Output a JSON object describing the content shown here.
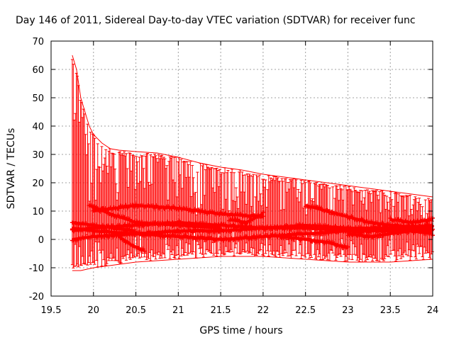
{
  "chart_data": {
    "type": "scatter",
    "title": "Day 146 of 2011, Sidereal Day-to-day VTEC variation (SDTVAR) for receiver func",
    "xlabel": "GPS time / hours",
    "ylabel": "SDTVAR / TECUs",
    "xlim": [
      19.5,
      24
    ],
    "ylim": [
      -20,
      70
    ],
    "xticks": [
      "19.5",
      "20",
      "20.5",
      "21",
      "21.5",
      "22",
      "22.5",
      "23",
      "23.5",
      "24"
    ],
    "yticks": [
      "-20",
      "-10",
      "0",
      "10",
      "20",
      "30",
      "40",
      "50",
      "60",
      "70"
    ],
    "grid": true,
    "series_color": "#ff0000",
    "description": "Many satellite tracks of SDTVAR values with error bars, 19.75-24 h",
    "upper_envelope": [
      [
        19.75,
        65
      ],
      [
        19.8,
        60
      ],
      [
        19.85,
        50
      ],
      [
        19.9,
        45
      ],
      [
        19.95,
        40
      ],
      [
        20.0,
        37
      ],
      [
        20.1,
        34
      ],
      [
        20.2,
        32
      ],
      [
        20.3,
        31.5
      ],
      [
        20.5,
        31
      ],
      [
        20.75,
        30.5
      ],
      [
        21.0,
        29
      ],
      [
        21.25,
        27
      ],
      [
        21.5,
        25.5
      ],
      [
        21.75,
        24.5
      ],
      [
        22.0,
        23
      ],
      [
        22.25,
        22
      ],
      [
        22.5,
        21
      ],
      [
        22.75,
        20
      ],
      [
        23.0,
        19
      ],
      [
        23.25,
        18
      ],
      [
        23.5,
        17
      ],
      [
        23.75,
        16
      ],
      [
        24.0,
        15
      ]
    ],
    "lower_envelope": [
      [
        19.75,
        -11
      ],
      [
        19.85,
        -11
      ],
      [
        20.0,
        -10
      ],
      [
        20.25,
        -9
      ],
      [
        20.5,
        -8
      ],
      [
        21.0,
        -7
      ],
      [
        21.5,
        -6
      ],
      [
        22.0,
        -6
      ],
      [
        22.5,
        -7
      ],
      [
        23.0,
        -8
      ],
      [
        23.5,
        -8
      ],
      [
        24.0,
        -7
      ]
    ],
    "tracks": [
      {
        "points": [
          [
            19.75,
            3
          ],
          [
            20.0,
            4
          ],
          [
            20.5,
            5
          ],
          [
            21.0,
            6
          ],
          [
            21.5,
            5
          ],
          [
            22.0,
            4
          ],
          [
            22.5,
            5
          ],
          [
            23.0,
            4
          ],
          [
            23.5,
            4
          ],
          [
            24.0,
            5
          ]
        ]
      },
      {
        "points": [
          [
            19.75,
            0
          ],
          [
            20.0,
            1
          ],
          [
            20.5,
            2
          ],
          [
            21.0,
            3
          ],
          [
            21.5,
            3
          ],
          [
            22.0,
            4
          ],
          [
            22.5,
            4
          ],
          [
            23.0,
            3
          ],
          [
            23.5,
            3
          ],
          [
            24.0,
            4
          ]
        ]
      },
      {
        "points": [
          [
            19.75,
            4
          ],
          [
            20.0,
            3
          ],
          [
            20.5,
            2
          ],
          [
            21.0,
            1
          ],
          [
            21.5,
            0
          ],
          [
            22.0,
            1
          ],
          [
            22.5,
            2
          ],
          [
            23.0,
            3
          ],
          [
            23.5,
            4
          ],
          [
            24.0,
            3
          ]
        ]
      },
      {
        "points": [
          [
            20.0,
            10
          ],
          [
            20.5,
            12
          ],
          [
            21.0,
            11
          ],
          [
            21.5,
            9
          ],
          [
            22.0,
            8
          ]
        ]
      },
      {
        "points": [
          [
            19.95,
            12
          ],
          [
            20.2,
            9
          ],
          [
            20.5,
            6
          ],
          [
            21.0,
            5
          ],
          [
            21.5,
            4
          ]
        ]
      },
      {
        "points": [
          [
            22.5,
            12
          ],
          [
            22.75,
            10
          ],
          [
            23.0,
            8
          ],
          [
            23.25,
            6
          ],
          [
            23.5,
            5
          ],
          [
            24.0,
            4
          ]
        ]
      },
      {
        "points": [
          [
            20.3,
            1
          ],
          [
            20.45,
            -2
          ],
          [
            20.6,
            -4
          ]
        ]
      },
      {
        "points": [
          [
            22.2,
            1
          ],
          [
            22.5,
            0
          ],
          [
            22.75,
            -1
          ],
          [
            23.0,
            -3
          ]
        ]
      },
      {
        "points": [
          [
            23.5,
            7
          ],
          [
            23.75,
            6
          ],
          [
            24.0,
            7
          ]
        ]
      },
      {
        "points": [
          [
            21.6,
            7
          ],
          [
            21.8,
            6
          ],
          [
            22.0,
            9
          ]
        ]
      },
      {
        "points": [
          [
            19.75,
            6
          ],
          [
            20.0,
            5
          ],
          [
            20.25,
            4
          ],
          [
            20.5,
            3
          ]
        ]
      },
      {
        "points": [
          [
            23.0,
            2
          ],
          [
            23.25,
            1
          ],
          [
            23.5,
            2
          ],
          [
            23.75,
            3
          ],
          [
            24.0,
            2
          ]
        ]
      }
    ]
  }
}
